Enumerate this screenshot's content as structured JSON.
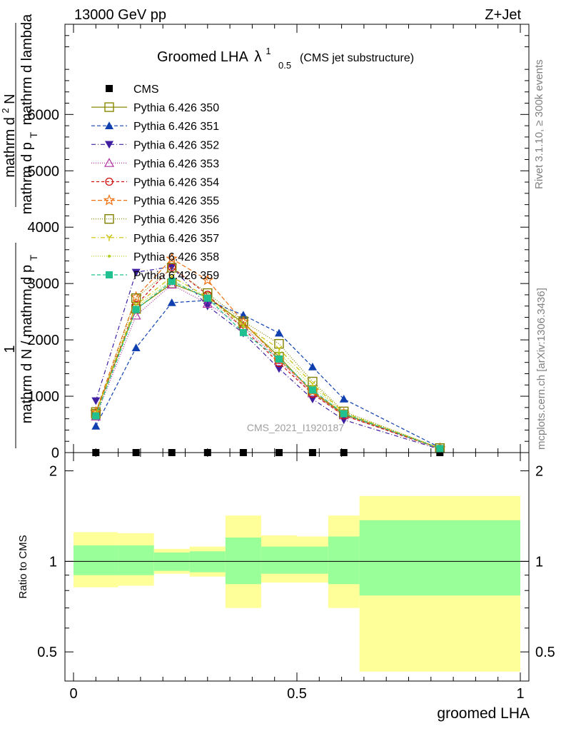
{
  "header": {
    "left": "13000 GeV pp",
    "right": "Z+Jet"
  },
  "side_labels": {
    "rivet": "Rivet 3.1.10, ≥ 300k events",
    "mcplots": "mcplots.cern.ch [arXiv:1306.3436]"
  },
  "watermark": "CMS_2021_I1920187",
  "colors": {
    "band_inner": "#99ff99",
    "band_outer": "#ffff99"
  },
  "chart_data": {
    "type": "line",
    "title_main": "Groomed LHA",
    "title_symbol": "λ",
    "title_sup": "1",
    "title_sub": "0.5",
    "title_suffix": "(CMS jet substructure)",
    "xlabel": "groomed LHA",
    "ylabel_upper": {
      "numerator_text": "mathrm d",
      "numerator_sup": "2",
      "numerator_end": "N",
      "denominator_main": "mathrm d p",
      "denominator_sub": "T",
      "denominator_end": "mathrm d lambda",
      "prefix_numerator": "1",
      "prefix_denominator_a": "mathrm d N / mathrm d p",
      "prefix_denominator_sub": "T"
    },
    "ylabel_lower": "Ratio to CMS",
    "xlim": [
      0,
      1
    ],
    "ylim_upper": [
      0,
      7600
    ],
    "ylim_lower": [
      0.4,
      2.3
    ],
    "x_ticks": [
      "0",
      "0.5",
      "1"
    ],
    "y_ticks_upper": [
      "0",
      "1000",
      "2000",
      "3000",
      "4000",
      "5000",
      "6000"
    ],
    "y_ticks_lower": [
      "0.5",
      "1",
      "2"
    ],
    "bins": [
      [
        0.0,
        0.1
      ],
      [
        0.1,
        0.18
      ],
      [
        0.18,
        0.26
      ],
      [
        0.26,
        0.34
      ],
      [
        0.34,
        0.42
      ],
      [
        0.42,
        0.5
      ],
      [
        0.5,
        0.57
      ],
      [
        0.57,
        0.64
      ],
      [
        0.64,
        1.0
      ]
    ],
    "data_x": [
      0.05,
      0.14,
      0.22,
      0.3,
      0.38,
      0.46,
      0.535,
      0.605,
      0.82
    ],
    "data_y": [
      0,
      0,
      0,
      0,
      0,
      0,
      0,
      0,
      0
    ],
    "band_inner": [
      [
        0.9,
        1.13
      ],
      [
        0.9,
        1.13
      ],
      [
        0.93,
        1.07
      ],
      [
        0.92,
        1.08
      ],
      [
        0.84,
        1.2
      ],
      [
        0.91,
        1.12
      ],
      [
        0.91,
        1.12
      ],
      [
        0.84,
        1.21
      ],
      [
        0.77,
        1.37
      ]
    ],
    "band_outer": [
      [
        0.82,
        1.25
      ],
      [
        0.83,
        1.24
      ],
      [
        0.91,
        1.1
      ],
      [
        0.89,
        1.12
      ],
      [
        0.7,
        1.42
      ],
      [
        0.85,
        1.22
      ],
      [
        0.85,
        1.21
      ],
      [
        0.7,
        1.42
      ],
      [
        0.43,
        1.65
      ]
    ],
    "series": [
      {
        "name": "CMS",
        "color": "#000000",
        "marker": "square-filled",
        "dash": "none",
        "values": [
          0,
          0,
          0,
          0,
          0,
          0,
          0,
          0,
          0
        ]
      },
      {
        "name": "Pythia 6.426 350",
        "color": "#888800",
        "marker": "square-open",
        "dash": "solid",
        "values": [
          720,
          2550,
          3000,
          2760,
          2300,
          1700,
          1070,
          680,
          80
        ]
      },
      {
        "name": "Pythia 6.426 351",
        "color": "#1040b0",
        "marker": "triangle-up-filled",
        "dash": "5,3",
        "values": [
          470,
          1860,
          2660,
          2700,
          2440,
          2120,
          1520,
          950,
          90
        ]
      },
      {
        "name": "Pythia 6.426 352",
        "color": "#4020a0",
        "marker": "triangle-down-filled",
        "dash": "6,3,1,3",
        "values": [
          920,
          3200,
          3300,
          2600,
          2120,
          1490,
          950,
          580,
          60
        ]
      },
      {
        "name": "Pythia 6.426 353",
        "color": "#b030a0",
        "marker": "triangle-up-open",
        "dash": "1,2",
        "values": [
          640,
          2430,
          2980,
          2640,
          2240,
          1640,
          1050,
          660,
          70
        ]
      },
      {
        "name": "Pythia 6.426 354",
        "color": "#d01010",
        "marker": "circle-open",
        "dash": "4,3",
        "values": [
          690,
          2620,
          3290,
          2800,
          2200,
          1590,
          1040,
          660,
          70
        ]
      },
      {
        "name": "Pythia 6.426 355",
        "color": "#f07010",
        "marker": "star-open",
        "dash": "6,3",
        "values": [
          720,
          2760,
          3440,
          3060,
          2320,
          1650,
          1090,
          690,
          75
        ]
      },
      {
        "name": "Pythia 6.426 356",
        "color": "#808000",
        "marker": "square-open",
        "dash": "1,2",
        "values": [
          690,
          2740,
          3280,
          2830,
          2330,
          1930,
          1260,
          730,
          80
        ]
      },
      {
        "name": "Pythia 6.426 357",
        "color": "#c8c000",
        "marker": "y-mark",
        "dash": "6,3,1,3",
        "values": [
          700,
          2620,
          3120,
          2760,
          2270,
          1840,
          1220,
          710,
          78
        ]
      },
      {
        "name": "Pythia 6.426 358",
        "color": "#b0d020",
        "marker": "dot",
        "dash": "1,2",
        "values": [
          680,
          2580,
          3060,
          2730,
          2240,
          1760,
          1170,
          700,
          75
        ]
      },
      {
        "name": "Pythia 6.426 359",
        "color": "#20c090",
        "marker": "square-filled",
        "dash": "5,3",
        "values": [
          650,
          2540,
          3040,
          2740,
          2130,
          1660,
          1110,
          690,
          72
        ]
      }
    ]
  }
}
